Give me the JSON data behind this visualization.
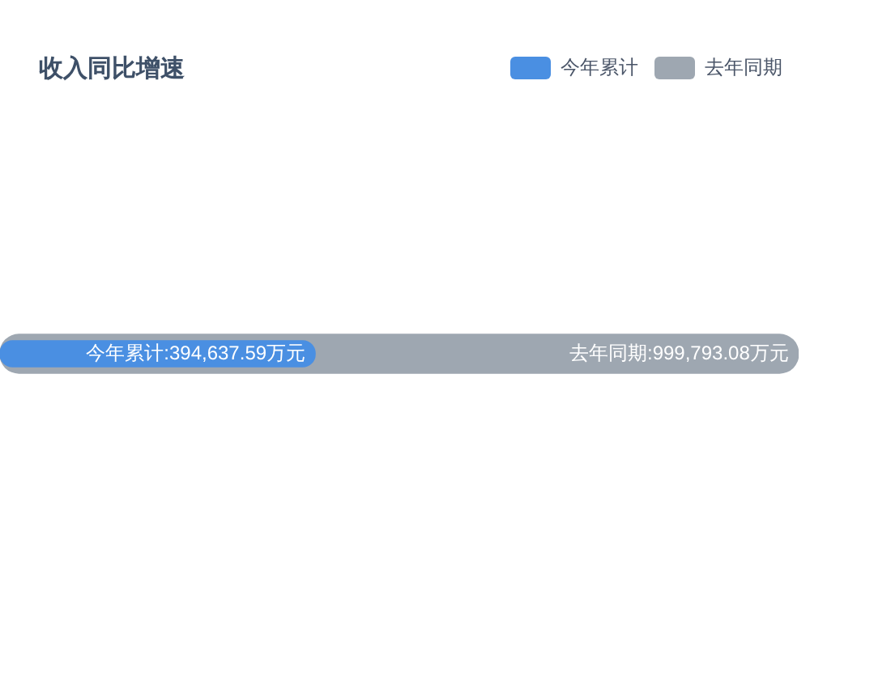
{
  "chart_data": {
    "type": "bar",
    "title": "收入同比增速",
    "orientation": "horizontal",
    "categories": [
      null
    ],
    "series": [
      {
        "name": "今年累计",
        "color": "#4a8fe2",
        "values": [
          394637.59
        ],
        "value_labels": [
          "今年累计:394,637.59万元"
        ]
      },
      {
        "name": "去年同期",
        "color": "#9ea7b1",
        "values": [
          999793.08
        ],
        "value_labels": [
          "去年同期:999,793.08万元"
        ]
      }
    ],
    "legend": "top right",
    "tick_labels": false,
    "grid": false
  }
}
